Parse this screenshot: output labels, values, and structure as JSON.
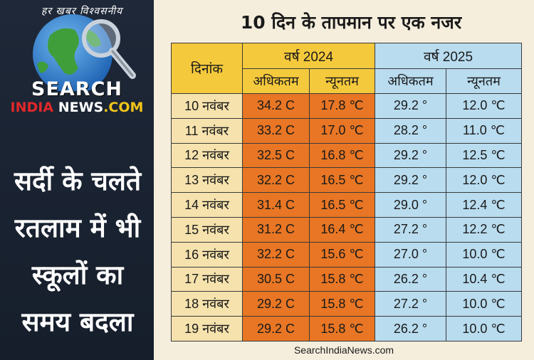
{
  "logo": {
    "tagline": "हर खबर विश्वसनीय",
    "brand_line1": "SEARCH",
    "brand_line2_a": "INDIA",
    "brand_line2_b": " NEWS",
    "brand_line2_c": ".COM"
  },
  "headline": {
    "lines": [
      "सर्दी के चलते",
      "रतलाम में भी",
      "स्कूलों का",
      "समय बदला"
    ]
  },
  "title": "10 दिन के तापमान पर एक नजर",
  "table": {
    "date_header": "दिनांक",
    "year1": "वर्ष 2024",
    "year2": "वर्ष 2025",
    "max_label": "अधिकतम",
    "min_label": "न्यूनतम",
    "rows": [
      {
        "date": "10 नवंबर",
        "max24": "34.2 C",
        "min24": "17.8 ℃",
        "max25": "29.2 °",
        "min25": "12.0 ℃"
      },
      {
        "date": "11 नवंबर",
        "max24": "33.2 C",
        "min24": "17.0 ℃",
        "max25": "28.2 °",
        "min25": "11.0 ℃"
      },
      {
        "date": "12 नवंबर",
        "max24": "32.5 C",
        "min24": "16.8 ℃",
        "max25": "29.2 °",
        "min25": "12.5 ℃"
      },
      {
        "date": "13 नवंबर",
        "max24": "32.2 C",
        "min24": "16.5 ℃",
        "max25": "29.2 °",
        "min25": "12.0 ℃"
      },
      {
        "date": "14 नवंबर",
        "max24": "31.4 C",
        "min24": "16.5 ℃",
        "max25": "29.0 °",
        "min25": "12.4 ℃"
      },
      {
        "date": "15 नवंबर",
        "max24": "31.2 C",
        "min24": "16.4 ℃",
        "max25": "27.2 °",
        "min25": "12.2 ℃"
      },
      {
        "date": "16 नवंबर",
        "max24": "32.2 C",
        "min24": "15.6 ℃",
        "max25": "27.0 °",
        "min25": "10.0 ℃"
      },
      {
        "date": "17 नवंबर",
        "max24": "30.5 C",
        "min24": "15.8 ℃",
        "max25": "26.2 °",
        "min25": "10.4 ℃"
      },
      {
        "date": "18 नवंबर",
        "max24": "29.2 C",
        "min24": "15.8 ℃",
        "max25": "27.2 °",
        "min25": "10.0 ℃"
      },
      {
        "date": "19 नवंबर",
        "max24": "29.2 C",
        "min24": "15.8 ℃",
        "max25": "26.2 °",
        "min25": "10.0 ℃"
      }
    ]
  },
  "footer": "SearchIndiaNews.com",
  "colors": {
    "header_2024": "#f5c93c",
    "cells_2024": "#e87624",
    "cells_2025": "#b9dcef",
    "date_cells": "#f5e2ad",
    "left_panel": "#1e2838",
    "right_panel": "#f6eedd"
  }
}
